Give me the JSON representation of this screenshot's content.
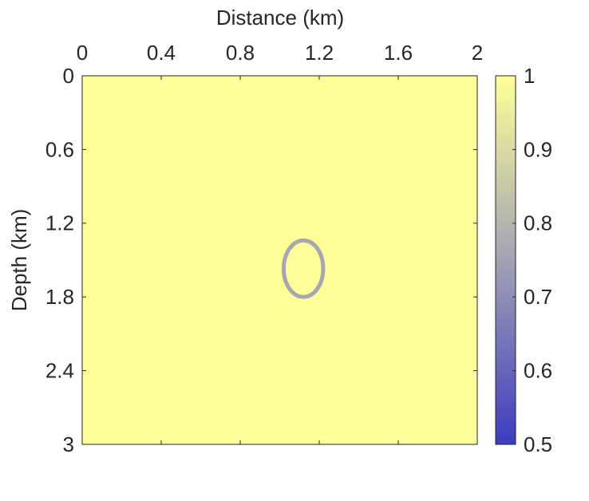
{
  "chart_data": {
    "type": "image",
    "xlabel": "Distance (km)",
    "ylabel": "Depth (km)",
    "xlim": [
      0,
      2
    ],
    "xticks": [
      0,
      0.4,
      0.8,
      1.2,
      1.6,
      2
    ],
    "ylim": [
      0,
      3
    ],
    "yticks": [
      0,
      0.6,
      1.2,
      1.8,
      2.4,
      3
    ],
    "y_reversed": true,
    "background": 1,
    "anomaly": {
      "shape": "ellipse-ring",
      "cx": 1.12,
      "cy": 1.57,
      "rx": 0.1,
      "ry": 0.23,
      "value": 0.72
    },
    "colorbar": {
      "lim": [
        0.5,
        1
      ],
      "ticks": [
        0.5,
        0.6,
        0.7,
        0.8,
        0.9,
        1
      ]
    },
    "colormap": [
      "#3c3cbe",
      "#a2a2b4",
      "#ffff99"
    ]
  }
}
